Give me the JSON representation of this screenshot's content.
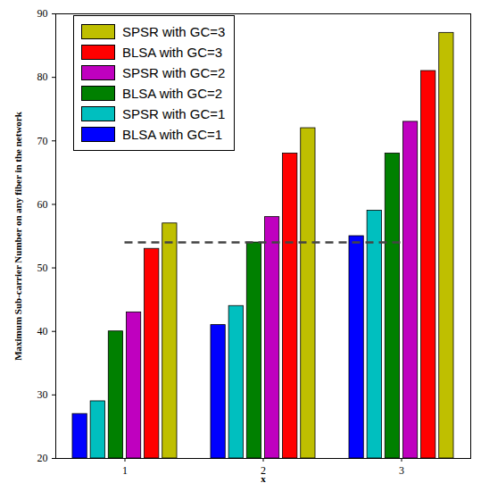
{
  "chart_data": {
    "type": "bar",
    "x_label": "x",
    "y_label": "Maximum Sub-carrier Number on any fiber in the network",
    "categories": [
      "1",
      "2",
      "3"
    ],
    "series": [
      {
        "name": "BLSA with GC=1",
        "color": "#0000ff",
        "values": [
          27,
          41,
          55
        ]
      },
      {
        "name": "SPSR with GC=1",
        "color": "#00bfbf",
        "values": [
          29,
          44,
          59
        ]
      },
      {
        "name": "BLSA with GC=2",
        "color": "#008000",
        "values": [
          40,
          54,
          68
        ]
      },
      {
        "name": "SPSR with GC=2",
        "color": "#bf00bf",
        "values": [
          43,
          58,
          73
        ]
      },
      {
        "name": "BLSA with GC=3",
        "color": "#ff0000",
        "values": [
          53,
          68,
          81
        ]
      },
      {
        "name": "SPSR with GC=3",
        "color": "#bfbf00",
        "values": [
          57,
          72,
          87
        ]
      }
    ],
    "ylim": [
      20,
      90
    ],
    "yticks": [
      20,
      30,
      40,
      50,
      60,
      70,
      80,
      90
    ],
    "grid": false,
    "legend": "upper left",
    "reference_line": {
      "value": 54,
      "line_style": "dashed"
    }
  }
}
